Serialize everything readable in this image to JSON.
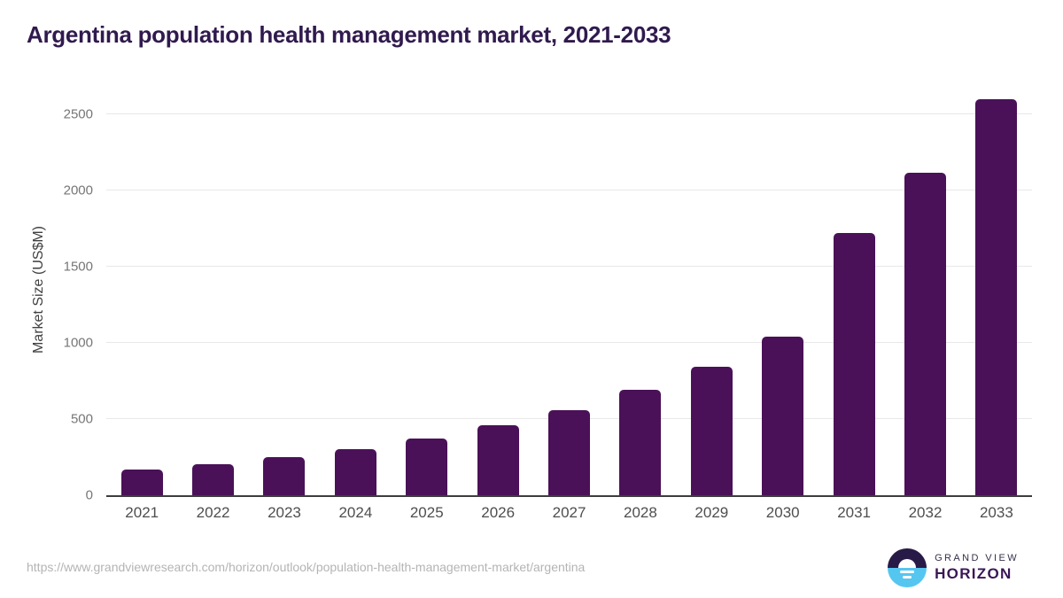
{
  "title": "Argentina population health management market, 2021-2033",
  "chart_data": {
    "type": "bar",
    "title": "Argentina population health management market, 2021-2033",
    "categories": [
      "2021",
      "2022",
      "2023",
      "2024",
      "2025",
      "2026",
      "2027",
      "2028",
      "2029",
      "2030",
      "2031",
      "2032",
      "2033"
    ],
    "values": [
      170,
      205,
      250,
      305,
      375,
      460,
      560,
      690,
      845,
      1040,
      1720,
      2115,
      2600
    ],
    "xlabel": "",
    "ylabel": "Market Size (US$M)",
    "ylim": [
      0,
      2640
    ],
    "yticks": [
      0,
      500,
      1000,
      1500,
      2000,
      2500
    ],
    "grid": "horizontal",
    "legend": "none",
    "bar_color": "#4a1158"
  },
  "colors": {
    "title": "#301a4e",
    "bar": "#4a1158",
    "axis_line": "#3d3d3d",
    "gridline": "#e8e8e8",
    "tick_text": "#767676",
    "xlabel_text": "#4e4e4e",
    "url_text": "#b4b4b4",
    "logo_dark": "#281a47",
    "logo_blue": "#55c6f0",
    "logo_horizon_text": "#3a1656"
  },
  "footer": {
    "url": "https://www.grandviewresearch.com/horizon/outlook/population-health-management-market/argentina",
    "logo": {
      "icon": "sunrise-horizon-icon",
      "brand_top": "GRAND VIEW",
      "brand_bottom": "HORIZON"
    }
  }
}
